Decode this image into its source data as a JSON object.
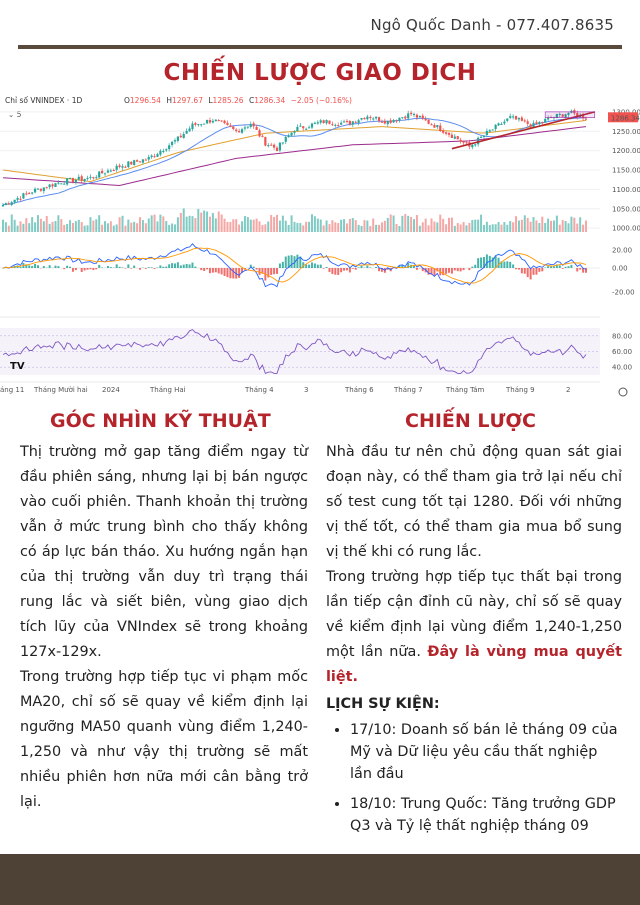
{
  "header": {
    "author": "Ngô Quốc Danh - 077.407.8635",
    "title": "CHIẾN LƯỢC GIAO DỊCH"
  },
  "chart_data": {
    "type": "candlestick",
    "title": "Chỉ số VNINDEX · 1D",
    "symbol_line": {
      "o_label": "O",
      "o": "1296.54",
      "h_label": "H",
      "h": "1297.67",
      "l_label": "L",
      "l": "1285.26",
      "c_label": "C",
      "c": "1286.34",
      "change": "−2.05 (−0.16%)"
    },
    "indicator_count": "5",
    "last_price_label": "1286.34",
    "price_axis": [
      1300,
      1250,
      1200,
      1150,
      1100,
      1050,
      1000
    ],
    "ylim": [
      990,
      1310
    ],
    "macd_axis": [
      "20.00",
      "0.00",
      "-20.00"
    ],
    "rsi_axis": [
      "80.00",
      "60.00",
      "40.00"
    ],
    "x_labels": [
      "áng 11",
      "Tháng Mười hai",
      "2024",
      "Tháng Hai",
      "Tháng 4",
      "3",
      "Tháng 6",
      "Tháng 7",
      "Tháng Tám",
      "Tháng 9",
      "2"
    ],
    "close_anchors": [
      {
        "i": 0,
        "c": 1060
      },
      {
        "i": 10,
        "c": 1095
      },
      {
        "i": 20,
        "c": 1120
      },
      {
        "i": 30,
        "c": 1130
      },
      {
        "i": 40,
        "c": 1160
      },
      {
        "i": 50,
        "c": 1180
      },
      {
        "i": 60,
        "c": 1230
      },
      {
        "i": 65,
        "c": 1265
      },
      {
        "i": 72,
        "c": 1280
      },
      {
        "i": 80,
        "c": 1250
      },
      {
        "i": 85,
        "c": 1270
      },
      {
        "i": 90,
        "c": 1220
      },
      {
        "i": 94,
        "c": 1205
      },
      {
        "i": 100,
        "c": 1255
      },
      {
        "i": 110,
        "c": 1275
      },
      {
        "i": 118,
        "c": 1270
      },
      {
        "i": 125,
        "c": 1290
      },
      {
        "i": 132,
        "c": 1275
      },
      {
        "i": 140,
        "c": 1295
      },
      {
        "i": 148,
        "c": 1265
      },
      {
        "i": 155,
        "c": 1235
      },
      {
        "i": 160,
        "c": 1210
      },
      {
        "i": 166,
        "c": 1245
      },
      {
        "i": 174,
        "c": 1285
      },
      {
        "i": 182,
        "c": 1265
      },
      {
        "i": 188,
        "c": 1285
      },
      {
        "i": 194,
        "c": 1298
      },
      {
        "i": 200,
        "c": 1286
      }
    ],
    "ma_long_anchors": [
      {
        "i": 0,
        "c": 1130
      },
      {
        "i": 40,
        "c": 1110
      },
      {
        "i": 80,
        "c": 1180
      },
      {
        "i": 120,
        "c": 1215
      },
      {
        "i": 160,
        "c": 1225
      },
      {
        "i": 200,
        "c": 1262
      }
    ],
    "ma_mid_anchors": [
      {
        "i": 0,
        "c": 1150
      },
      {
        "i": 30,
        "c": 1120
      },
      {
        "i": 60,
        "c": 1195
      },
      {
        "i": 90,
        "c": 1245
      },
      {
        "i": 130,
        "c": 1262
      },
      {
        "i": 165,
        "c": 1245
      },
      {
        "i": 200,
        "c": 1278
      }
    ],
    "trend_line": [
      {
        "i": 154,
        "c": 1205
      },
      {
        "i": 203,
        "c": 1300
      }
    ],
    "resistance_box": {
      "i_start": 186,
      "i_end": 203,
      "top": 1300,
      "bottom": 1285
    },
    "colors": {
      "up": "#26a69a",
      "down": "#ef5350",
      "accent": "#b5242b",
      "rsi": "#7e57c2"
    }
  },
  "left": {
    "heading": "GÓC NHÌN KỸ THUẬT",
    "p1": "Thị trường mở gap tăng điểm ngay từ đầu phiên sáng, nhưng lại bị bán ngược vào cuối phiên. Thanh khoản thị trường vẫn ở mức trung bình cho thấy không có áp lực bán tháo. Xu hướng ngắn hạn của thị trường vẫn duy trì trạng thái rung lắc và siết biên, vùng giao dịch tích lũy của VNIndex sẽ trong khoảng 127x-129x.",
    "p2": "Trong trường hợp tiếp tục vi phạm mốc MA20, chỉ số sẽ quay về kiểm định lại ngưỡng MA50 quanh vùng điểm 1,240-1,250 và như vậy thị trường sẽ mất nhiều phiên hơn nữa mới cân bằng trở lại."
  },
  "right": {
    "heading": "CHIẾN LƯỢC",
    "p1": "Nhà đầu tư nên chủ động quan sát giai đoạn này, có thể tham gia trở lại nếu chỉ số test cung tốt tại 1280. Đối với những vị thế tốt, có thể tham gia mua bổ sung vị thế khi có rung lắc.",
    "p2": "Trong trường hợp tiếp tục thất bại trong lần tiếp cận đỉnh cũ này, chỉ số sẽ quay về kiểm định lại vùng điểm 1,240-1,250 một lần nữa.",
    "p2_bold": "Đây là vùng mua quyết liệt.",
    "events_title": "LỊCH SỰ KIỆN:",
    "events": [
      "17/10: Doanh số bán lẻ tháng 09 của Mỹ và Dữ liệu yêu cầu thất nghiệp lần đầu",
      "18/10: Trung Quốc: Tăng trưởng GDP Q3 và Tỷ lệ thất nghiệp tháng 09"
    ]
  }
}
